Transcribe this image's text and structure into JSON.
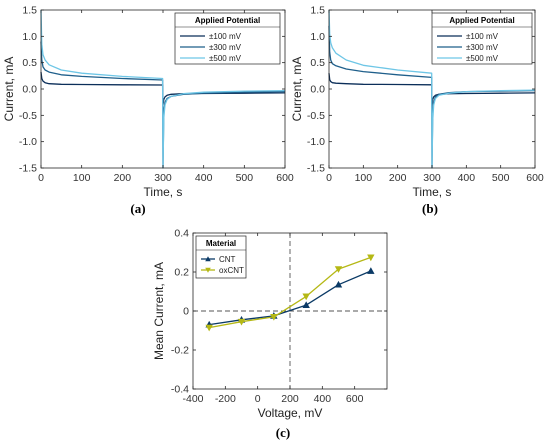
{
  "chart_data": [
    {
      "type": "line",
      "panel_label": "(a)",
      "xlabel": "Time, s",
      "ylabel": "Current, mA",
      "xlim": [
        0,
        600
      ],
      "ylim": [
        -1.5,
        1.5
      ],
      "xticks": [
        "0",
        "100",
        "200",
        "300",
        "400",
        "500",
        "600"
      ],
      "yticks": [
        "-1.5",
        "-1.0",
        "-0.5",
        "0.0",
        "0.5",
        "1.0",
        "1.5"
      ],
      "grid": false,
      "legend": {
        "title": "Applied Potential",
        "position": "top-right"
      },
      "series": [
        {
          "name": "±100 mV",
          "color": "#0b2e59",
          "x": [
            0,
            2,
            5,
            10,
            20,
            50,
            100,
            200,
            299,
            300,
            302,
            305,
            310,
            320,
            350,
            400,
            500,
            600
          ],
          "y": [
            0.32,
            0.2,
            0.15,
            0.12,
            0.1,
            0.09,
            0.085,
            0.08,
            0.075,
            -0.3,
            -0.2,
            -0.15,
            -0.12,
            -0.1,
            -0.09,
            -0.085,
            -0.08,
            -0.075
          ]
        },
        {
          "name": "±300 mV",
          "color": "#1f5f8b",
          "x": [
            0,
            2,
            5,
            10,
            20,
            50,
            100,
            200,
            299,
            300,
            302,
            305,
            310,
            320,
            350,
            400,
            500,
            600
          ],
          "y": [
            0.9,
            0.55,
            0.42,
            0.36,
            0.32,
            0.27,
            0.24,
            0.2,
            0.17,
            -1.5,
            -0.4,
            -0.25,
            -0.18,
            -0.14,
            -0.1,
            -0.08,
            -0.06,
            -0.05
          ]
        },
        {
          "name": "±500 mV",
          "color": "#6ec6e6",
          "x": [
            0,
            2,
            5,
            10,
            20,
            50,
            100,
            200,
            299,
            300,
            302,
            305,
            310,
            320,
            350,
            400,
            500,
            600
          ],
          "y": [
            1.5,
            0.85,
            0.65,
            0.55,
            0.46,
            0.36,
            0.3,
            0.24,
            0.2,
            -1.5,
            -0.55,
            -0.3,
            -0.2,
            -0.14,
            -0.09,
            -0.06,
            -0.04,
            -0.03
          ]
        }
      ]
    },
    {
      "type": "line",
      "panel_label": "(b)",
      "xlabel": "Time, s",
      "ylabel": "Current, mA",
      "xlim": [
        0,
        600
      ],
      "ylim": [
        -1.5,
        1.5
      ],
      "xticks": [
        "0",
        "100",
        "200",
        "300",
        "400",
        "500",
        "600"
      ],
      "yticks": [
        "-1.5",
        "-1.0",
        "-0.5",
        "0.0",
        "0.5",
        "1.0",
        "1.5"
      ],
      "grid": false,
      "legend": {
        "title": "Applied Potential",
        "position": "top-right"
      },
      "series": [
        {
          "name": "±100 mV",
          "color": "#0b2e59",
          "x": [
            0,
            2,
            5,
            10,
            20,
            50,
            100,
            200,
            299,
            300,
            302,
            305,
            310,
            320,
            350,
            400,
            500,
            600
          ],
          "y": [
            0.3,
            0.18,
            0.14,
            0.12,
            0.11,
            0.1,
            0.09,
            0.085,
            0.08,
            -0.35,
            -0.2,
            -0.15,
            -0.12,
            -0.1,
            -0.09,
            -0.085,
            -0.08,
            -0.075
          ]
        },
        {
          "name": "±300 mV",
          "color": "#1f5f8b",
          "x": [
            0,
            2,
            5,
            10,
            20,
            50,
            100,
            200,
            299,
            300,
            302,
            305,
            310,
            320,
            350,
            400,
            500,
            600
          ],
          "y": [
            1.2,
            0.7,
            0.55,
            0.48,
            0.44,
            0.38,
            0.33,
            0.27,
            0.22,
            -1.5,
            -0.45,
            -0.25,
            -0.15,
            -0.1,
            -0.07,
            -0.05,
            -0.04,
            -0.03
          ]
        },
        {
          "name": "±500 mV",
          "color": "#6ec6e6",
          "x": [
            0,
            2,
            5,
            10,
            20,
            50,
            100,
            200,
            299,
            300,
            302,
            305,
            310,
            320,
            350,
            400,
            500,
            600
          ],
          "y": [
            1.5,
            1.05,
            0.88,
            0.78,
            0.68,
            0.55,
            0.45,
            0.36,
            0.3,
            -1.5,
            -0.6,
            -0.3,
            -0.18,
            -0.12,
            -0.08,
            -0.05,
            -0.03,
            -0.02
          ]
        }
      ]
    },
    {
      "type": "line",
      "panel_label": "(c)",
      "xlabel": "Voltage, mV",
      "ylabel": "Mean Current, mA",
      "xlim": [
        -400,
        800
      ],
      "ylim": [
        -0.4,
        0.4
      ],
      "xticks": [
        "-400",
        "-200",
        "0",
        "200",
        "400",
        "600"
      ],
      "yticks": [
        "-0.4",
        "-0.2",
        "0",
        "0.2",
        "0.4"
      ],
      "grid": false,
      "reference_lines": {
        "x": 200,
        "y": 0
      },
      "legend": {
        "title": "Material",
        "position": "top-left"
      },
      "series": [
        {
          "name": "CNT",
          "color": "#0b3a66",
          "marker": "triangle-up",
          "x": [
            -300,
            -100,
            100,
            300,
            500,
            700
          ],
          "y": [
            -0.07,
            -0.045,
            -0.025,
            0.03,
            0.135,
            0.205
          ]
        },
        {
          "name": "oxCNT",
          "color": "#b5b815",
          "marker": "triangle-down",
          "x": [
            -300,
            -100,
            100,
            300,
            500,
            700
          ],
          "y": [
            -0.085,
            -0.055,
            -0.03,
            0.075,
            0.215,
            0.275
          ]
        }
      ]
    }
  ]
}
